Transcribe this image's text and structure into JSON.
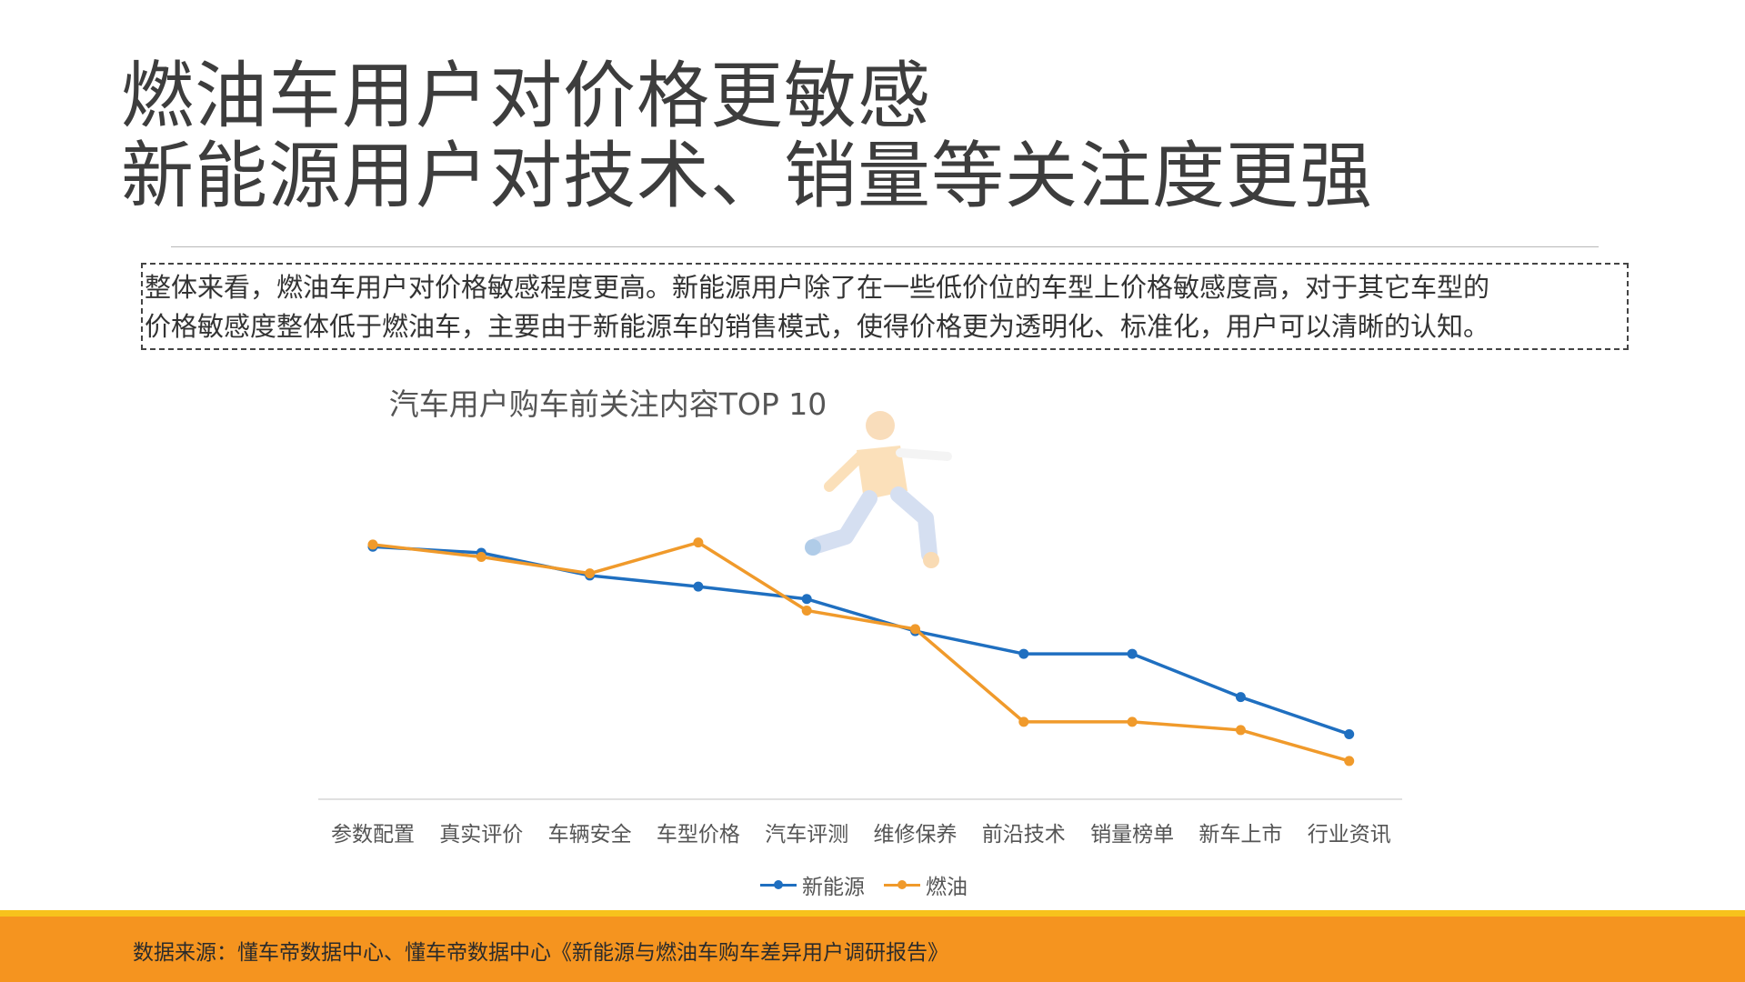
{
  "title": {
    "line1": "燃油车用户对价格更敏感",
    "line2": "新能源用户对技术、销量等关注度更强"
  },
  "summary": {
    "line1": "整体来看，燃油车用户对价格敏感程度更高。新能源用户除了在一些低价位的车型上价格敏感度高，对于其它车型的",
    "line2": "价格敏感度整体低于燃油车，主要由于新能源车的销售模式，使得价格更为透明化、标准化，用户可以清晰的认知。"
  },
  "chart_data": {
    "type": "line",
    "title": "汽车用户购车前关注内容TOP 10",
    "categories": [
      "参数配置",
      "真实评价",
      "车辆安全",
      "车型价格",
      "汽车评测",
      "维修保养",
      "前沿技术",
      "销量榜单",
      "新车上市",
      "行业资讯"
    ],
    "series": [
      {
        "name": "新能源",
        "color": "#1f6fc0",
        "values": [
          86.5,
          85.0,
          79.5,
          76.8,
          73.8,
          66.0,
          60.5,
          60.5,
          50.0,
          41.0
        ]
      },
      {
        "name": "燃油",
        "color": "#f09a2b",
        "values": [
          87.0,
          84.0,
          80.0,
          87.5,
          71.0,
          66.5,
          44.0,
          44.0,
          42.0,
          34.5
        ]
      }
    ],
    "ylim": [
      25,
      100
    ],
    "grid": false,
    "legend": "bottom-center"
  },
  "footer": {
    "source": "数据来源：懂车帝数据中心、懂车帝数据中心《新能源与燃油车购车差异用户调研报告》"
  },
  "colors": {
    "accent_orange": "#f5941f",
    "accent_yellow": "#f7c21c"
  },
  "icons": {
    "mascot": "running-person-illustration"
  }
}
